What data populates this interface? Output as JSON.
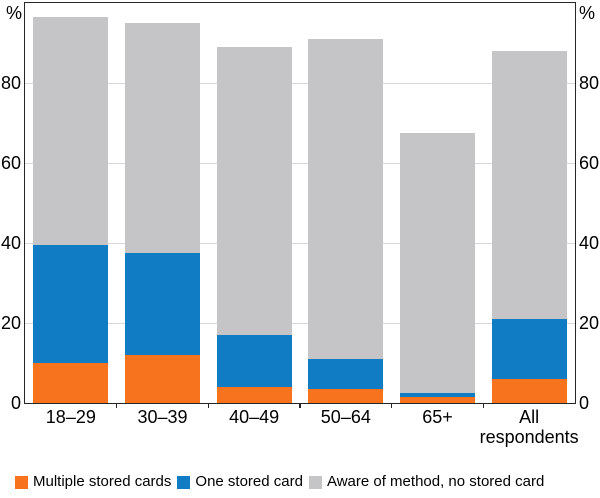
{
  "chart_data": {
    "type": "bar",
    "stacked": true,
    "categories": [
      "18–29",
      "30–39",
      "40–49",
      "50–64",
      "65+",
      "All respondents"
    ],
    "series": [
      {
        "name": "Multiple stored cards",
        "color": "#F8731E",
        "values": [
          10,
          12,
          4,
          3.5,
          1.5,
          6
        ]
      },
      {
        "name": "One stored card",
        "color": "#0F7CC4",
        "values": [
          29.5,
          25.5,
          13,
          7.5,
          1,
          15
        ]
      },
      {
        "name": "Aware of method, no stored card",
        "color": "#C5C5C7",
        "values": [
          57,
          57.5,
          72,
          80,
          65,
          67
        ]
      }
    ],
    "stack_totals": [
      96.5,
      95,
      89,
      91,
      67.5,
      88
    ],
    "ylim": [
      0,
      100
    ],
    "yticks": [
      0,
      20,
      40,
      60,
      80
    ],
    "axis_unit_left": "%",
    "axis_unit_right": "%",
    "grid": true,
    "legend_position": "bottom",
    "colors": {
      "gridline": "#d8d8d8",
      "frame": "#262626",
      "text": "#000000"
    }
  }
}
